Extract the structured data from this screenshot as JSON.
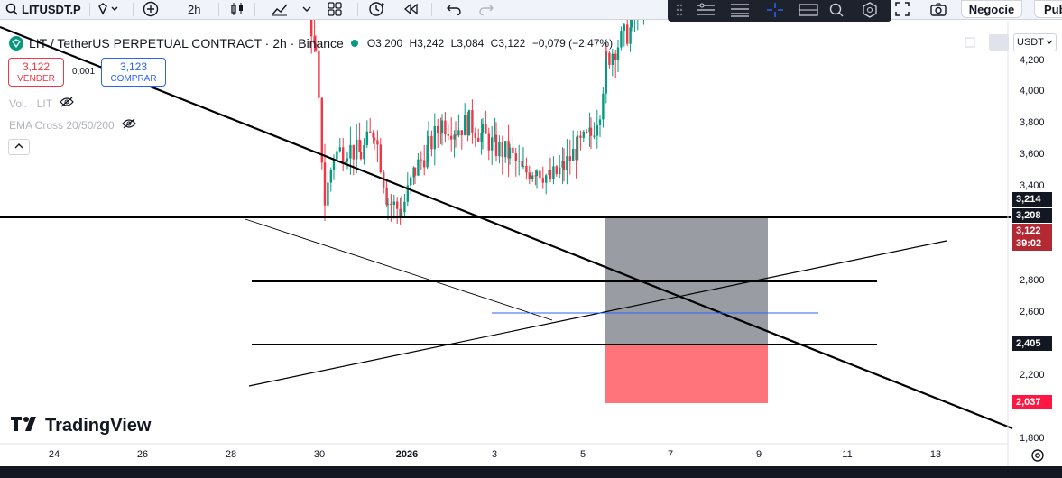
{
  "toolbar": {
    "symbol": "LITUSDT.P",
    "interval": "2h",
    "trade_button": "Negocie",
    "publish_button": "Pub"
  },
  "legend": {
    "title": "LIT / TetherUS PERPETUAL CONTRACT · 2h · Binance",
    "o_label": "O",
    "o": "3,200",
    "h_label": "H",
    "h": "3,242",
    "l_label": "L",
    "l": "3,084",
    "c_label": "C",
    "c": "3,122",
    "change": "−0,079 (−2,47%)"
  },
  "trade": {
    "sell_price": "3,122",
    "sell_label": "VENDER",
    "spread": "0,001",
    "buy_price": "3,123",
    "buy_label": "COMPRAR"
  },
  "indicators": {
    "vol": "Vol. · LIT",
    "ema": "EMA Cross 20/50/200"
  },
  "currency": "USDT",
  "price_axis": [
    "4,200",
    "4,000",
    "3,800",
    "3,600",
    "3,400",
    "3,200",
    "2,800",
    "2,600",
    "2,200",
    "1,800"
  ],
  "price_tags": {
    "high": "3,214",
    "level": "3,208",
    "last": "3,122",
    "countdown": "39:02",
    "support": "2,405",
    "stop": "2,037"
  },
  "time_axis": [
    "24",
    "26",
    "28",
    "30",
    "2026",
    "3",
    "5",
    "7",
    "9",
    "11",
    "13"
  ],
  "brand": "TradingView",
  "colors": {
    "up": "#089981",
    "down": "#f23645",
    "accent": "#2962ff"
  },
  "chart_data": {
    "type": "candlestick",
    "symbol": "LIT / TetherUS PERPETUAL CONTRACT",
    "timeframe": "2h",
    "ylim": [
      1.8,
      4.2
    ],
    "last_close": 3.122,
    "horizontal_levels": [
      3.208,
      2.8,
      2.405
    ],
    "position": {
      "entry": 3.208,
      "stop": 2.037
    }
  }
}
